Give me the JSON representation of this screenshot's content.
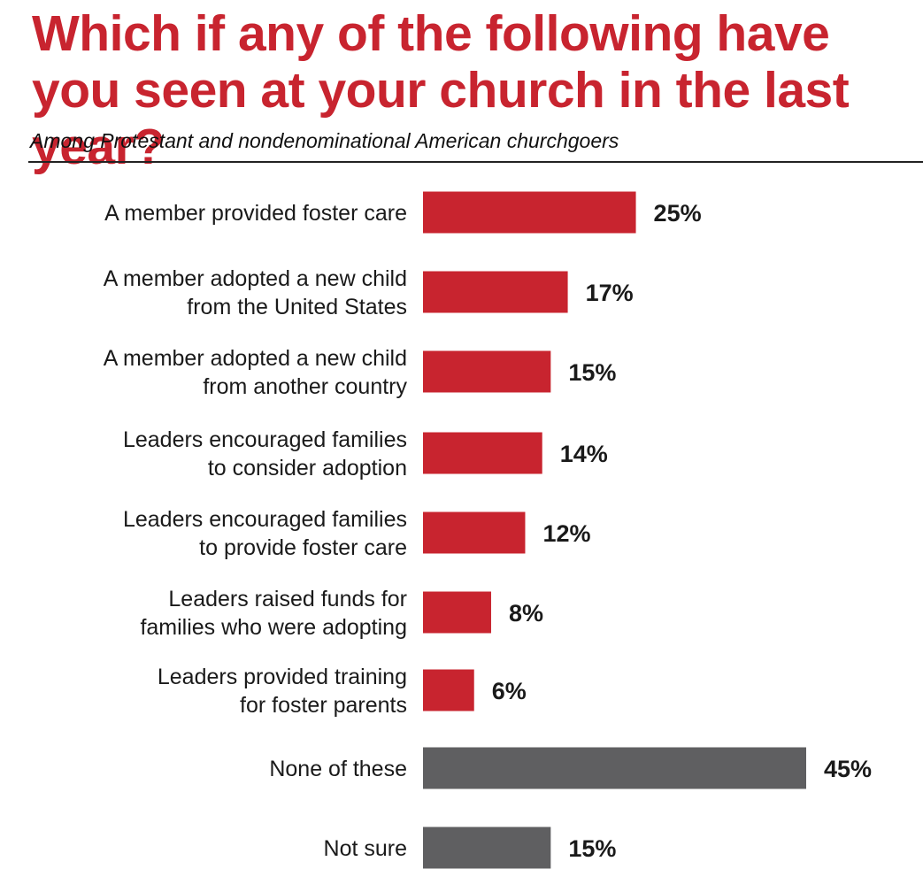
{
  "title": "Which if any of the following have you seen at your church in the last year?",
  "subtitle": "Among Protestant and nondenominational American churchgoers",
  "chart_data": {
    "type": "bar",
    "orientation": "horizontal",
    "title": "Which if any of the following have you seen at your church in the last year?",
    "subtitle": "Among Protestant and nondenominational American churchgoers",
    "categories": [
      [
        "A member provided foster care"
      ],
      [
        "A member adopted a new child",
        "from the United States"
      ],
      [
        "A member adopted a new child",
        "from another country"
      ],
      [
        "Leaders encouraged families",
        "to consider adoption"
      ],
      [
        "Leaders encouraged families",
        "to provide foster care"
      ],
      [
        "Leaders raised funds for",
        "families who were adopting"
      ],
      [
        "Leaders provided training",
        "for foster parents"
      ],
      [
        "None of these"
      ],
      [
        "Not sure"
      ]
    ],
    "values": [
      25,
      17,
      15,
      14,
      12,
      8,
      6,
      45,
      15
    ],
    "value_labels": [
      "25%",
      "17%",
      "15%",
      "14%",
      "12%",
      "8%",
      "6%",
      "45%",
      "15%"
    ],
    "value_unit": "%",
    "bar_colors": [
      "#c8242f",
      "#c8242f",
      "#c8242f",
      "#c8242f",
      "#c8242f",
      "#c8242f",
      "#c8242f",
      "#5f5f61",
      "#5f5f61"
    ],
    "xlim": [
      0,
      45
    ],
    "grid": false,
    "legend": "none"
  }
}
